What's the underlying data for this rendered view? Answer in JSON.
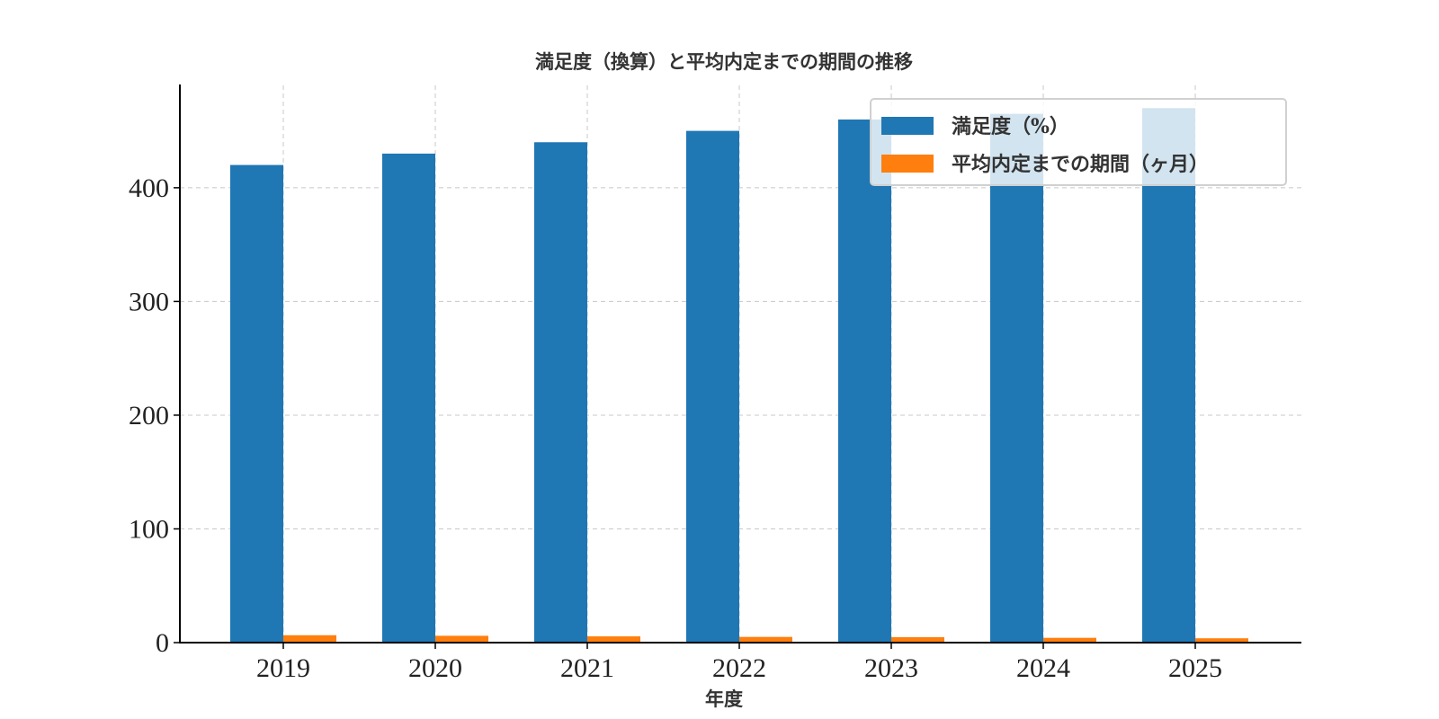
{
  "chart_data": {
    "type": "bar",
    "title": "満足度（換算）と平均内定までの期間の推移",
    "xlabel": "年度",
    "ylabel": "",
    "categories": [
      "2019",
      "2020",
      "2021",
      "2022",
      "2023",
      "2024",
      "2025"
    ],
    "series": [
      {
        "name": "満足度（%）",
        "color": "#1f77b4",
        "values": [
          420,
          430,
          440,
          450,
          460,
          465,
          470
        ]
      },
      {
        "name": "平均内定までの期間（ヶ月）",
        "color": "#ff7f0e",
        "values": [
          6.5,
          6.0,
          5.5,
          5.0,
          4.8,
          4.2,
          3.8
        ]
      }
    ],
    "ylim": [
      0,
      490
    ],
    "yticks": [
      0,
      100,
      200,
      300,
      400
    ],
    "grid": true,
    "legend_position": "top-right"
  }
}
